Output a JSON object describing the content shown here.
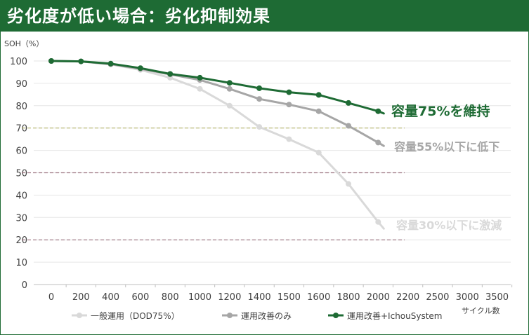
{
  "header": {
    "title": "劣化度が低い場合：劣化抑制効果"
  },
  "chart_data": {
    "type": "line",
    "title": "劣化度が低い場合：劣化抑制効果",
    "ylabel": "SOH（%）",
    "xlabel": "サイクル数",
    "ylim": [
      0,
      105
    ],
    "yticks": [
      0,
      10,
      20,
      30,
      40,
      50,
      60,
      70,
      80,
      90,
      100
    ],
    "xtick_labels": [
      "0",
      "200",
      "400",
      "600",
      "800",
      "1000",
      "1200",
      "1400",
      "1500",
      "1600",
      "1800",
      "2000",
      "2200",
      "2500",
      "3000",
      "3500"
    ],
    "grid": true,
    "legend_position": "bottom",
    "series": [
      {
        "name": "一般運用（DOD75%）",
        "color": "#d9d9d9",
        "x": [
          "0",
          "200",
          "400",
          "600",
          "800",
          "1000",
          "1200",
          "1400",
          "1500",
          "1600",
          "1800",
          "2000"
        ],
        "values": [
          100,
          99.8,
          98.5,
          96,
          92.5,
          87.5,
          80,
          70.5,
          65,
          59,
          45,
          28
        ],
        "end_value": 25,
        "annotation": "容量30%以下に激減"
      },
      {
        "name": "運用改善のみ",
        "color": "#a6a6a6",
        "x": [
          "0",
          "200",
          "400",
          "600",
          "800",
          "1000",
          "1200",
          "1400",
          "1500",
          "1600",
          "1800",
          "2000"
        ],
        "values": [
          100,
          99.8,
          98.5,
          96.5,
          94,
          91.5,
          87.5,
          83,
          80.5,
          77.5,
          71,
          63.5
        ],
        "end_value": 62,
        "annotation": "容量55%以下に低下"
      },
      {
        "name": "運用改善+IchouSystem",
        "color": "#1e6b34",
        "x": [
          "0",
          "200",
          "400",
          "600",
          "800",
          "1000",
          "1200",
          "1400",
          "1500",
          "1600",
          "1800",
          "2000"
        ],
        "values": [
          100,
          99.8,
          98.8,
          96.8,
          94.2,
          92.5,
          90.2,
          87.8,
          86,
          84.8,
          81.2,
          77.5
        ],
        "end_value": 76.5,
        "annotation": "容量75%を維持"
      }
    ],
    "reference_lines": [
      {
        "y": 70,
        "color": "#b5b56b"
      },
      {
        "y": 50,
        "color": "#a07a85"
      },
      {
        "y": 20,
        "color": "#a07a85"
      }
    ]
  }
}
